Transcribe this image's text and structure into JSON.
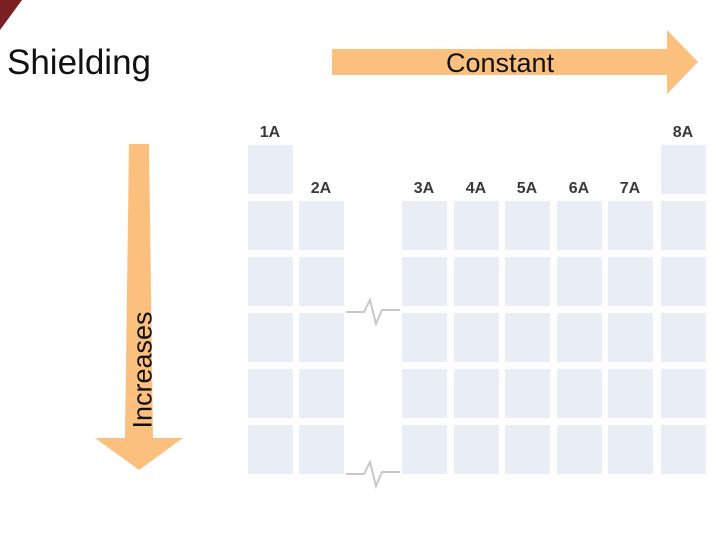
{
  "title": "Shielding",
  "horizontal_arrow": {
    "label": "Constant",
    "direction": "right",
    "color": "#fbbf7e"
  },
  "vertical_arrow": {
    "label": "Increases",
    "direction": "down",
    "color": "#fbbf7e"
  },
  "groups": [
    {
      "label": "1A",
      "rows": 6
    },
    {
      "label": "2A",
      "rows": 5
    },
    {
      "label": "3A",
      "rows": 5
    },
    {
      "label": "4A",
      "rows": 5
    },
    {
      "label": "5A",
      "rows": 5
    },
    {
      "label": "6A",
      "rows": 5
    },
    {
      "label": "7A",
      "rows": 5
    },
    {
      "label": "8A",
      "rows": 6
    }
  ],
  "colors": {
    "cell": "#e9edf6",
    "corner": "#7a1f24",
    "break_line": "#c8c8c8"
  }
}
